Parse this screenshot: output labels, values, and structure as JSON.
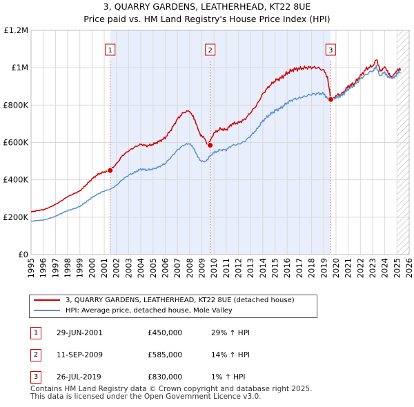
{
  "title_line1": "3, QUARRY GARDENS, LEATHERHEAD, KT22 8UE",
  "title_line2": "Price paid vs. HM Land Registry's House Price Index (HPI)",
  "colors": {
    "property_line": "#cc0000",
    "hpi_line": "#5b8fd0",
    "shade": "#e8eefb",
    "hatch": "#aaaaaa",
    "grid": "#d9d9d9",
    "marker_line": "#dd5555"
  },
  "chart_data": {
    "type": "line",
    "xlim": [
      1995,
      2026
    ],
    "ylim": [
      0,
      1200000
    ],
    "y_ticks": [
      {
        "value": 0,
        "label": "£0"
      },
      {
        "value": 200000,
        "label": "£200K"
      },
      {
        "value": 400000,
        "label": "£400K"
      },
      {
        "value": 600000,
        "label": "£600K"
      },
      {
        "value": 800000,
        "label": "£800K"
      },
      {
        "value": 1000000,
        "label": "£1M"
      },
      {
        "value": 1200000,
        "label": "£1.2M"
      }
    ],
    "x_ticks": [
      "1995",
      "1996",
      "1997",
      "1998",
      "1999",
      "2000",
      "2001",
      "2002",
      "2003",
      "2004",
      "2005",
      "2006",
      "2007",
      "2008",
      "2009",
      "2010",
      "2011",
      "2012",
      "2013",
      "2014",
      "2015",
      "2016",
      "2017",
      "2018",
      "2019",
      "2020",
      "2021",
      "2022",
      "2023",
      "2024",
      "2025",
      "2026"
    ],
    "shaded_range": [
      2001.49,
      2019.57
    ],
    "forecast_start": 2025.0,
    "series": [
      {
        "name": "3, QUARRY GARDENS, LEATHERHEAD, KT22 8UE (detached house)",
        "color": "#cc0000",
        "x": [
          1995.0,
          1995.5,
          1996.0,
          1996.5,
          1997.0,
          1997.5,
          1998.0,
          1998.5,
          1999.0,
          1999.5,
          2000.0,
          2000.5,
          2001.0,
          2001.49,
          2002.0,
          2002.5,
          2003.0,
          2003.5,
          2004.0,
          2004.5,
          2005.0,
          2005.5,
          2006.0,
          2006.5,
          2007.0,
          2007.5,
          2008.0,
          2008.3,
          2008.6,
          2008.9,
          2009.2,
          2009.5,
          2009.7,
          2010.0,
          2010.5,
          2011.0,
          2011.5,
          2012.0,
          2012.5,
          2013.0,
          2013.5,
          2014.0,
          2014.5,
          2015.0,
          2015.5,
          2016.0,
          2016.5,
          2017.0,
          2017.5,
          2018.0,
          2018.5,
          2019.0,
          2019.3,
          2019.57,
          2019.8,
          2020.0,
          2020.5,
          2021.0,
          2021.5,
          2022.0,
          2022.5,
          2023.0,
          2023.3,
          2023.6,
          2024.0,
          2024.3,
          2024.6,
          2025.0,
          2025.3
        ],
        "values": [
          228000,
          235000,
          240000,
          252000,
          268000,
          288000,
          310000,
          325000,
          340000,
          372000,
          405000,
          430000,
          442000,
          450000,
          485000,
          530000,
          555000,
          575000,
          590000,
          582000,
          590000,
          605000,
          625000,
          670000,
          725000,
          760000,
          770000,
          735000,
          690000,
          640000,
          622000,
          585000,
          615000,
          650000,
          672000,
          668000,
          700000,
          705000,
          722000,
          760000,
          800000,
          860000,
          900000,
          930000,
          945000,
          972000,
          990000,
          995000,
          1000000,
          1002000,
          1000000,
          985000,
          950000,
          830000,
          835000,
          850000,
          860000,
          900000,
          915000,
          955000,
          995000,
          1010000,
          1045000,
          985000,
          1000000,
          975000,
          945000,
          990000,
          985000
        ]
      },
      {
        "name": "HPI: Average price, detached house, Mole Valley",
        "color": "#5b8fd0",
        "x": [
          1995.0,
          1995.5,
          1996.0,
          1996.5,
          1997.0,
          1997.5,
          1998.0,
          1998.5,
          1999.0,
          1999.5,
          2000.0,
          2000.5,
          2001.0,
          2001.49,
          2002.0,
          2002.5,
          2003.0,
          2003.5,
          2004.0,
          2004.5,
          2005.0,
          2005.5,
          2006.0,
          2006.5,
          2007.0,
          2007.5,
          2008.0,
          2008.3,
          2008.6,
          2008.9,
          2009.2,
          2009.5,
          2009.7,
          2010.0,
          2010.5,
          2011.0,
          2011.5,
          2012.0,
          2012.5,
          2013.0,
          2013.5,
          2014.0,
          2014.5,
          2015.0,
          2015.5,
          2016.0,
          2016.5,
          2017.0,
          2017.5,
          2018.0,
          2018.5,
          2019.0,
          2019.3,
          2019.57,
          2019.8,
          2020.0,
          2020.5,
          2021.0,
          2021.5,
          2022.0,
          2022.5,
          2023.0,
          2023.3,
          2023.6,
          2024.0,
          2024.3,
          2024.6,
          2025.0,
          2025.3
        ],
        "values": [
          178000,
          182000,
          185000,
          193000,
          205000,
          220000,
          235000,
          245000,
          258000,
          280000,
          305000,
          325000,
          340000,
          349000,
          370000,
          402000,
          425000,
          440000,
          458000,
          452000,
          458000,
          470000,
          487000,
          522000,
          560000,
          585000,
          595000,
          570000,
          535000,
          500000,
          495000,
          512000,
          530000,
          545000,
          560000,
          560000,
          585000,
          590000,
          605000,
          635000,
          670000,
          715000,
          745000,
          770000,
          785000,
          812000,
          830000,
          838000,
          848000,
          858000,
          862000,
          860000,
          840000,
          822000,
          828000,
          840000,
          852000,
          885000,
          905000,
          940000,
          965000,
          985000,
          1000000,
          960000,
          972000,
          955000,
          940000,
          968000,
          975000
        ]
      }
    ],
    "sale_points": [
      {
        "label": "1",
        "x": 2001.49,
        "value": 450000
      },
      {
        "label": "2",
        "x": 2009.69,
        "value": 585000
      },
      {
        "label": "3",
        "x": 2019.57,
        "value": 830000
      }
    ]
  },
  "legend": {
    "property_label": "3, QUARRY GARDENS, LEATHERHEAD, KT22 8UE (detached house)",
    "hpi_label": "HPI: Average price, detached house, Mole Valley"
  },
  "sales": [
    {
      "num": "1",
      "date": "29-JUN-2001",
      "price": "£450,000",
      "hpi": "29% ↑ HPI"
    },
    {
      "num": "2",
      "date": "11-SEP-2009",
      "price": "£585,000",
      "hpi": "14% ↑ HPI"
    },
    {
      "num": "3",
      "date": "26-JUL-2019",
      "price": "£830,000",
      "hpi": "1% ↑ HPI"
    }
  ],
  "footer": {
    "line1": "Contains HM Land Registry data © Crown copyright and database right 2025.",
    "line2": "This data is licensed under the Open Government Licence v3.0."
  }
}
